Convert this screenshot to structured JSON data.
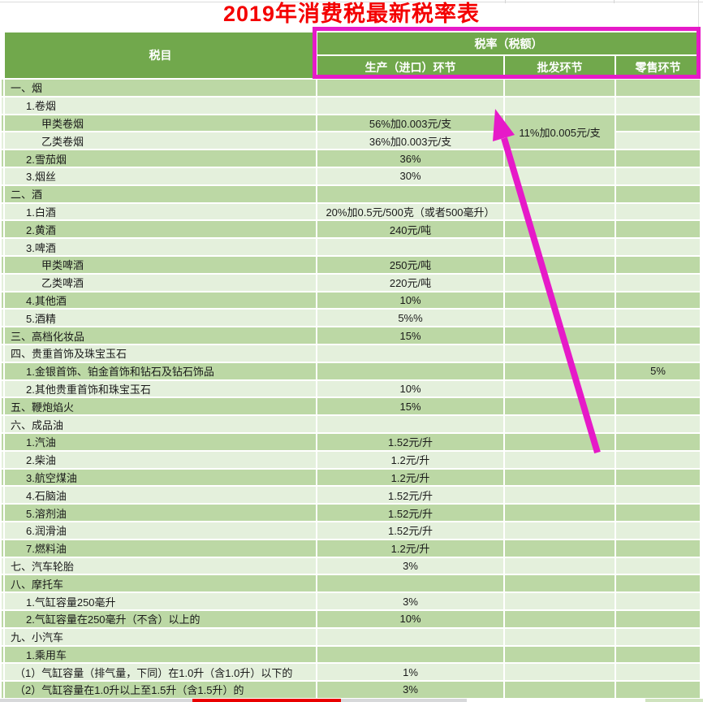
{
  "title": "2019年消费税最新税率表",
  "colors": {
    "header_green": "#71A84C",
    "row_green": "#BCD8A5",
    "row_light": "#E4F0DC",
    "annotation_magenta": "#E61AC8",
    "title_red": "#F40000",
    "underline_red": "#E90000"
  },
  "table": {
    "header": {
      "tax_item": "税目",
      "tax_rate_group": "税率（税额）",
      "col_production": "生产（进口）环节",
      "col_wholesale": "批发环节",
      "col_retail": "零售环节"
    },
    "rows": [
      {
        "label": "一、烟",
        "indent": 0
      },
      {
        "label": "1.卷烟",
        "indent": 1
      },
      {
        "label": "甲类卷烟",
        "indent": 2,
        "production": "56%加0.003元/支",
        "wholesale": "11%加0.005元/支",
        "wholesale_rowspan": 2
      },
      {
        "label": "乙类卷烟",
        "indent": 2,
        "production": "36%加0.003元/支",
        "wholesale_skip": true
      },
      {
        "label": "2.雪茄烟",
        "indent": 1,
        "production": "36%"
      },
      {
        "label": "3.烟丝",
        "indent": 1,
        "production": "30%"
      },
      {
        "label": "二、酒",
        "indent": 0
      },
      {
        "label": "1.白酒",
        "indent": 1,
        "production": "20%加0.5元/500克（或者500毫升）"
      },
      {
        "label": "2.黄酒",
        "indent": 1,
        "production": "240元/吨"
      },
      {
        "label": "3.啤酒",
        "indent": 1
      },
      {
        "label": "甲类啤酒",
        "indent": 2,
        "production": "250元/吨"
      },
      {
        "label": "乙类啤酒",
        "indent": 2,
        "production": "220元/吨"
      },
      {
        "label": "4.其他酒",
        "indent": 1,
        "production": "10%"
      },
      {
        "label": "5.酒精",
        "indent": 1,
        "production": "5%%"
      },
      {
        "label": "三、高档化妆品",
        "indent": 0,
        "production": "15%"
      },
      {
        "label": "四、贵重首饰及珠宝玉石",
        "indent": 0
      },
      {
        "label": "1.金银首饰、铂金首饰和钻石及钻石饰品",
        "indent": 1,
        "retail": "5%"
      },
      {
        "label": "2.其他贵重首饰和珠宝玉石",
        "indent": 1,
        "production": "10%"
      },
      {
        "label": "五、鞭炮焰火",
        "indent": 0,
        "production": "15%"
      },
      {
        "label": "六、成品油",
        "indent": 0
      },
      {
        "label": "1.汽油",
        "indent": 1,
        "production": "1.52元/升"
      },
      {
        "label": "2.柴油",
        "indent": 1,
        "production": "1.2元/升"
      },
      {
        "label": "3.航空煤油",
        "indent": 1,
        "production": "1.2元/升"
      },
      {
        "label": "4.石脑油",
        "indent": 1,
        "production": "1.52元/升"
      },
      {
        "label": "5.溶剂油",
        "indent": 1,
        "production": "1.52元/升"
      },
      {
        "label": "6.润滑油",
        "indent": 1,
        "production": "1.52元/升"
      },
      {
        "label": "7.燃料油",
        "indent": 1,
        "production": "1.2元/升"
      },
      {
        "label": "七、汽车轮胎",
        "indent": 0,
        "production": "3%"
      },
      {
        "label": "八、摩托车",
        "indent": 0
      },
      {
        "label": "1.气缸容量250毫升",
        "indent": 1,
        "production": "3%"
      },
      {
        "label": "2.气缸容量在250毫升（不含）以上的",
        "indent": 1,
        "production": "10%"
      },
      {
        "label": "九、小汽车",
        "indent": 0
      },
      {
        "label": "1.乘用车",
        "indent": 1
      },
      {
        "label": "（1）气缸容量（排气量，下同）在1.0升（含1.0升）以下的",
        "indent": 3,
        "production": "1%"
      },
      {
        "label": "（2）气缸容量在1.0升以上至1.5升（含1.5升）的",
        "indent": 3,
        "production": "3%"
      }
    ]
  },
  "annotations": {
    "highlight_box_color": "#E61AC8",
    "arrow_color": "#E61AC8",
    "red_underline_color": "#E90000"
  }
}
